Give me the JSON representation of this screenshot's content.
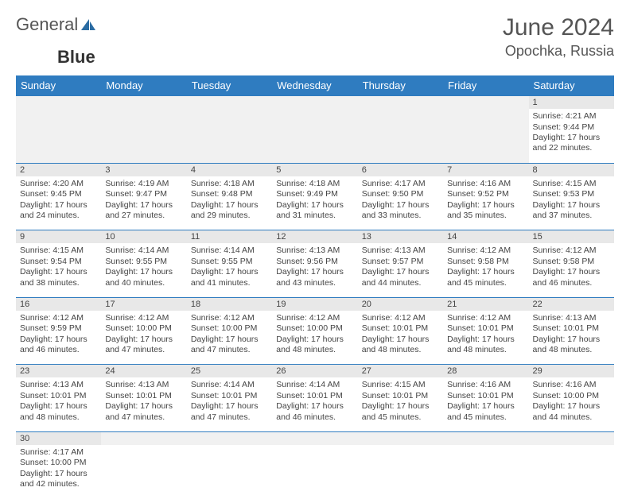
{
  "brand": {
    "part1": "General",
    "part2": "Blue"
  },
  "title": "June 2024",
  "location": "Opochka, Russia",
  "colors": {
    "header_bg": "#2f7cc0",
    "header_fg": "#ffffff",
    "accent": "#2b6ca3",
    "text": "#444",
    "daynum_bg": "#e8e8e8"
  },
  "day_headers": [
    "Sunday",
    "Monday",
    "Tuesday",
    "Wednesday",
    "Thursday",
    "Friday",
    "Saturday"
  ],
  "weeks": [
    [
      null,
      null,
      null,
      null,
      null,
      null,
      {
        "n": "1",
        "l1": "Sunrise: 4:21 AM",
        "l2": "Sunset: 9:44 PM",
        "l3": "Daylight: 17 hours",
        "l4": "and 22 minutes."
      }
    ],
    [
      {
        "n": "2",
        "l1": "Sunrise: 4:20 AM",
        "l2": "Sunset: 9:45 PM",
        "l3": "Daylight: 17 hours",
        "l4": "and 24 minutes."
      },
      {
        "n": "3",
        "l1": "Sunrise: 4:19 AM",
        "l2": "Sunset: 9:47 PM",
        "l3": "Daylight: 17 hours",
        "l4": "and 27 minutes."
      },
      {
        "n": "4",
        "l1": "Sunrise: 4:18 AM",
        "l2": "Sunset: 9:48 PM",
        "l3": "Daylight: 17 hours",
        "l4": "and 29 minutes."
      },
      {
        "n": "5",
        "l1": "Sunrise: 4:18 AM",
        "l2": "Sunset: 9:49 PM",
        "l3": "Daylight: 17 hours",
        "l4": "and 31 minutes."
      },
      {
        "n": "6",
        "l1": "Sunrise: 4:17 AM",
        "l2": "Sunset: 9:50 PM",
        "l3": "Daylight: 17 hours",
        "l4": "and 33 minutes."
      },
      {
        "n": "7",
        "l1": "Sunrise: 4:16 AM",
        "l2": "Sunset: 9:52 PM",
        "l3": "Daylight: 17 hours",
        "l4": "and 35 minutes."
      },
      {
        "n": "8",
        "l1": "Sunrise: 4:15 AM",
        "l2": "Sunset: 9:53 PM",
        "l3": "Daylight: 17 hours",
        "l4": "and 37 minutes."
      }
    ],
    [
      {
        "n": "9",
        "l1": "Sunrise: 4:15 AM",
        "l2": "Sunset: 9:54 PM",
        "l3": "Daylight: 17 hours",
        "l4": "and 38 minutes."
      },
      {
        "n": "10",
        "l1": "Sunrise: 4:14 AM",
        "l2": "Sunset: 9:55 PM",
        "l3": "Daylight: 17 hours",
        "l4": "and 40 minutes."
      },
      {
        "n": "11",
        "l1": "Sunrise: 4:14 AM",
        "l2": "Sunset: 9:55 PM",
        "l3": "Daylight: 17 hours",
        "l4": "and 41 minutes."
      },
      {
        "n": "12",
        "l1": "Sunrise: 4:13 AM",
        "l2": "Sunset: 9:56 PM",
        "l3": "Daylight: 17 hours",
        "l4": "and 43 minutes."
      },
      {
        "n": "13",
        "l1": "Sunrise: 4:13 AM",
        "l2": "Sunset: 9:57 PM",
        "l3": "Daylight: 17 hours",
        "l4": "and 44 minutes."
      },
      {
        "n": "14",
        "l1": "Sunrise: 4:12 AM",
        "l2": "Sunset: 9:58 PM",
        "l3": "Daylight: 17 hours",
        "l4": "and 45 minutes."
      },
      {
        "n": "15",
        "l1": "Sunrise: 4:12 AM",
        "l2": "Sunset: 9:58 PM",
        "l3": "Daylight: 17 hours",
        "l4": "and 46 minutes."
      }
    ],
    [
      {
        "n": "16",
        "l1": "Sunrise: 4:12 AM",
        "l2": "Sunset: 9:59 PM",
        "l3": "Daylight: 17 hours",
        "l4": "and 46 minutes."
      },
      {
        "n": "17",
        "l1": "Sunrise: 4:12 AM",
        "l2": "Sunset: 10:00 PM",
        "l3": "Daylight: 17 hours",
        "l4": "and 47 minutes."
      },
      {
        "n": "18",
        "l1": "Sunrise: 4:12 AM",
        "l2": "Sunset: 10:00 PM",
        "l3": "Daylight: 17 hours",
        "l4": "and 47 minutes."
      },
      {
        "n": "19",
        "l1": "Sunrise: 4:12 AM",
        "l2": "Sunset: 10:00 PM",
        "l3": "Daylight: 17 hours",
        "l4": "and 48 minutes."
      },
      {
        "n": "20",
        "l1": "Sunrise: 4:12 AM",
        "l2": "Sunset: 10:01 PM",
        "l3": "Daylight: 17 hours",
        "l4": "and 48 minutes."
      },
      {
        "n": "21",
        "l1": "Sunrise: 4:12 AM",
        "l2": "Sunset: 10:01 PM",
        "l3": "Daylight: 17 hours",
        "l4": "and 48 minutes."
      },
      {
        "n": "22",
        "l1": "Sunrise: 4:13 AM",
        "l2": "Sunset: 10:01 PM",
        "l3": "Daylight: 17 hours",
        "l4": "and 48 minutes."
      }
    ],
    [
      {
        "n": "23",
        "l1": "Sunrise: 4:13 AM",
        "l2": "Sunset: 10:01 PM",
        "l3": "Daylight: 17 hours",
        "l4": "and 48 minutes."
      },
      {
        "n": "24",
        "l1": "Sunrise: 4:13 AM",
        "l2": "Sunset: 10:01 PM",
        "l3": "Daylight: 17 hours",
        "l4": "and 47 minutes."
      },
      {
        "n": "25",
        "l1": "Sunrise: 4:14 AM",
        "l2": "Sunset: 10:01 PM",
        "l3": "Daylight: 17 hours",
        "l4": "and 47 minutes."
      },
      {
        "n": "26",
        "l1": "Sunrise: 4:14 AM",
        "l2": "Sunset: 10:01 PM",
        "l3": "Daylight: 17 hours",
        "l4": "and 46 minutes."
      },
      {
        "n": "27",
        "l1": "Sunrise: 4:15 AM",
        "l2": "Sunset: 10:01 PM",
        "l3": "Daylight: 17 hours",
        "l4": "and 45 minutes."
      },
      {
        "n": "28",
        "l1": "Sunrise: 4:16 AM",
        "l2": "Sunset: 10:01 PM",
        "l3": "Daylight: 17 hours",
        "l4": "and 45 minutes."
      },
      {
        "n": "29",
        "l1": "Sunrise: 4:16 AM",
        "l2": "Sunset: 10:00 PM",
        "l3": "Daylight: 17 hours",
        "l4": "and 44 minutes."
      }
    ],
    [
      {
        "n": "30",
        "l1": "Sunrise: 4:17 AM",
        "l2": "Sunset: 10:00 PM",
        "l3": "Daylight: 17 hours",
        "l4": "and 42 minutes."
      },
      null,
      null,
      null,
      null,
      null,
      null
    ]
  ]
}
